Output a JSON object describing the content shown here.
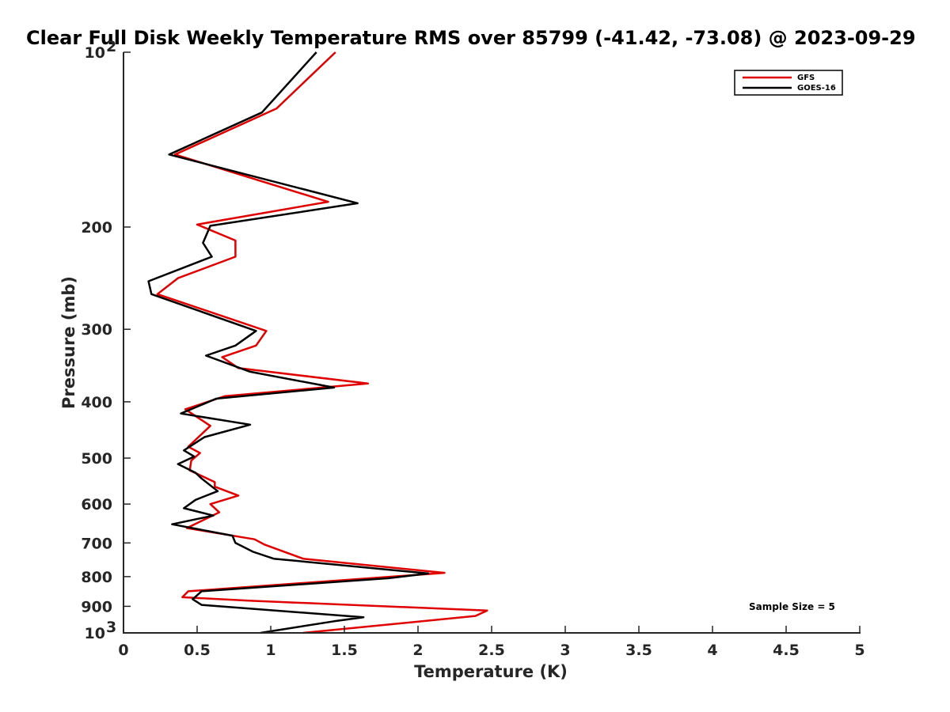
{
  "chart_data": {
    "type": "line",
    "title": "Clear Full Disk Weekly Temperature RMS over 85799 (-41.42, -73.08) @ 2023-09-29",
    "xlabel": "Temperature (K)",
    "ylabel": "Pressure (mb)",
    "xlim": [
      0,
      5
    ],
    "ylim": [
      100,
      1000
    ],
    "y_scale": "log",
    "y_reversed": true,
    "x_ticks": [
      "0",
      "0.5",
      "1",
      "1.5",
      "2",
      "2.5",
      "3",
      "3.5",
      "4",
      "4.5",
      "5"
    ],
    "y_ticks": [
      {
        "value": 100,
        "base": "10",
        "exp": "2"
      },
      {
        "value": 200,
        "label": "200"
      },
      {
        "value": 300,
        "label": "300"
      },
      {
        "value": 400,
        "label": "400"
      },
      {
        "value": 500,
        "label": "500"
      },
      {
        "value": 600,
        "label": "600"
      },
      {
        "value": 700,
        "label": "700"
      },
      {
        "value": 800,
        "label": "800"
      },
      {
        "value": 900,
        "label": "900"
      },
      {
        "value": 1000,
        "base": "10",
        "exp": "3"
      }
    ],
    "grid": false,
    "legend_position": "top-right",
    "annotation": "Sample Size = 5",
    "series": [
      {
        "name": "GFS",
        "color": "#e00000",
        "points": [
          [
            1.44,
            100
          ],
          [
            1.04,
            125
          ],
          [
            0.35,
            150
          ],
          [
            1.39,
            181
          ],
          [
            0.5,
            198
          ],
          [
            0.76,
            211
          ],
          [
            0.76,
            225
          ],
          [
            0.37,
            245
          ],
          [
            0.23,
            261
          ],
          [
            0.97,
            302
          ],
          [
            0.9,
            320
          ],
          [
            0.67,
            335
          ],
          [
            0.78,
            350
          ],
          [
            1.66,
            372
          ],
          [
            0.69,
            391
          ],
          [
            0.42,
            412
          ],
          [
            0.59,
            440
          ],
          [
            0.44,
            478
          ],
          [
            0.52,
            490
          ],
          [
            0.46,
            505
          ],
          [
            0.45,
            525
          ],
          [
            0.62,
            550
          ],
          [
            0.62,
            560
          ],
          [
            0.78,
            580
          ],
          [
            0.59,
            600
          ],
          [
            0.65,
            620
          ],
          [
            0.43,
            660
          ],
          [
            0.89,
            690
          ],
          [
            0.96,
            705
          ],
          [
            1.22,
            745
          ],
          [
            2.18,
            788
          ],
          [
            0.44,
            848
          ],
          [
            0.4,
            868
          ],
          [
            0.85,
            880
          ],
          [
            2.47,
            915
          ],
          [
            2.39,
            935
          ],
          [
            1.22,
            1000
          ]
        ]
      },
      {
        "name": "GOES-16",
        "color": "#000000",
        "points": [
          [
            1.31,
            100
          ],
          [
            0.94,
            127
          ],
          [
            0.31,
            150
          ],
          [
            1.59,
            182
          ],
          [
            0.59,
            199
          ],
          [
            0.54,
            213
          ],
          [
            0.6,
            225
          ],
          [
            0.17,
            248
          ],
          [
            0.19,
            261
          ],
          [
            0.9,
            302
          ],
          [
            0.76,
            320
          ],
          [
            0.56,
            333
          ],
          [
            0.86,
            355
          ],
          [
            1.43,
            378
          ],
          [
            0.63,
            395
          ],
          [
            0.39,
            419
          ],
          [
            0.86,
            438
          ],
          [
            0.55,
            460
          ],
          [
            0.41,
            485
          ],
          [
            0.48,
            497
          ],
          [
            0.37,
            512
          ],
          [
            0.49,
            530
          ],
          [
            0.53,
            542
          ],
          [
            0.64,
            570
          ],
          [
            0.49,
            590
          ],
          [
            0.41,
            610
          ],
          [
            0.61,
            628
          ],
          [
            0.33,
            650
          ],
          [
            0.74,
            680
          ],
          [
            0.76,
            700
          ],
          [
            0.88,
            725
          ],
          [
            1.02,
            745
          ],
          [
            2.07,
            790
          ],
          [
            1.8,
            805
          ],
          [
            0.53,
            848
          ],
          [
            0.47,
            875
          ],
          [
            0.53,
            895
          ],
          [
            1.63,
            940
          ],
          [
            1.43,
            955
          ],
          [
            0.93,
            1000
          ]
        ]
      }
    ]
  }
}
